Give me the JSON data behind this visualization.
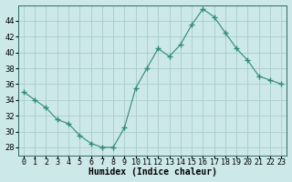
{
  "x": [
    0,
    1,
    2,
    3,
    4,
    5,
    6,
    7,
    8,
    9,
    10,
    11,
    12,
    13,
    14,
    15,
    16,
    17,
    18,
    19,
    20,
    21,
    22,
    23
  ],
  "y": [
    35,
    34,
    33,
    31.5,
    31,
    29.5,
    28.5,
    28,
    28,
    30.5,
    35.5,
    38,
    40.5,
    39.5,
    41,
    43.5,
    45.5,
    44.5,
    42.5,
    40.5,
    39,
    37,
    36.5,
    36
  ],
  "line_color": "#2e8b7a",
  "marker": "+",
  "marker_color": "#2e8b7a",
  "bg_color": "#cce8e8",
  "grid_color": "#aacccc",
  "axis_color": "#336666",
  "xlabel": "Humidex (Indice chaleur)",
  "ylim": [
    27,
    46
  ],
  "xlim": [
    -0.5,
    23.5
  ],
  "yticks": [
    28,
    30,
    32,
    34,
    36,
    38,
    40,
    42,
    44
  ],
  "xlabel_fontsize": 7,
  "tick_fontsize": 6,
  "xlabel_fontweight": "bold"
}
